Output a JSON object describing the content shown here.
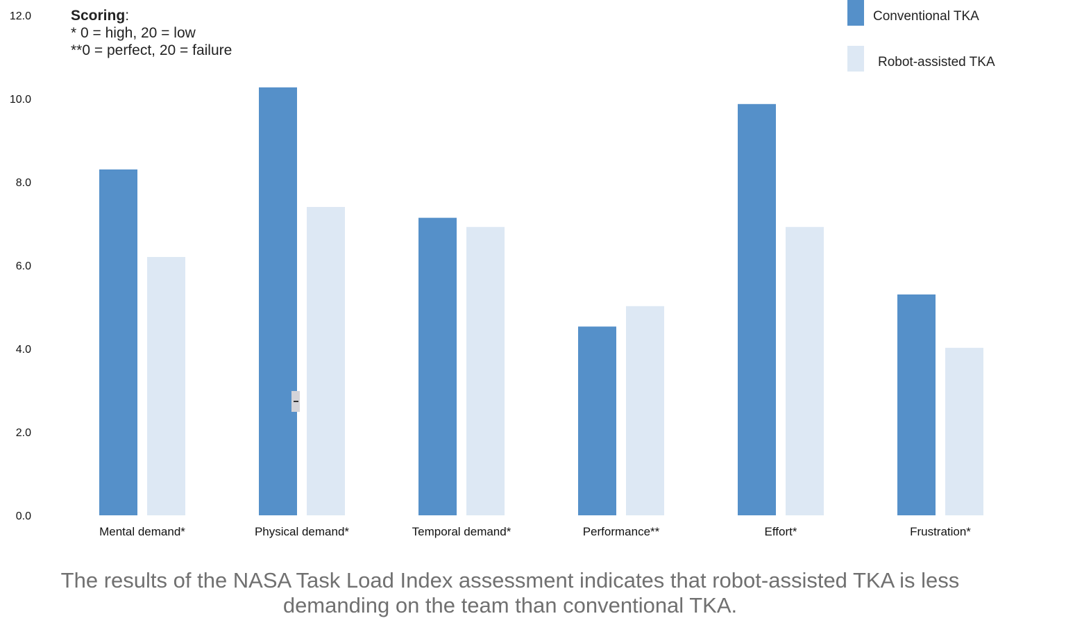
{
  "chart_data": {
    "type": "bar",
    "categories": [
      "Mental demand*",
      "Physical demand*",
      "Temporal demand*",
      "Performance**",
      "Effort*",
      "Frustration*"
    ],
    "series": [
      {
        "name": "Conventional TKA",
        "color": "#5590c9",
        "values": [
          8.3,
          10.27,
          7.14,
          4.53,
          9.87,
          5.3
        ]
      },
      {
        "name": "Robot-assisted TKA",
        "color": "#dde8f4",
        "values": [
          6.2,
          7.4,
          6.92,
          5.02,
          6.92,
          4.02
        ]
      }
    ],
    "ylim": [
      0,
      12
    ],
    "yticks": [
      "0.0",
      "2.0",
      "4.0",
      "6.0",
      "8.0",
      "10.0",
      "12.0"
    ],
    "ytick_values": [
      0,
      2,
      4,
      6,
      8,
      10,
      12
    ],
    "legend_position": "top-right",
    "title": "",
    "xlabel": "",
    "ylabel": ""
  },
  "scoring": {
    "title": "Scoring",
    "title_suffix": ":",
    "line1": "* 0 = high, 20 = low",
    "line2": "**0 = perfect, 20 = failure"
  },
  "caption": {
    "line1": "The results of the NASA Task Load Index assessment indicates that robot-assisted TKA is less",
    "line2": "demanding on the team than conventional TKA."
  }
}
